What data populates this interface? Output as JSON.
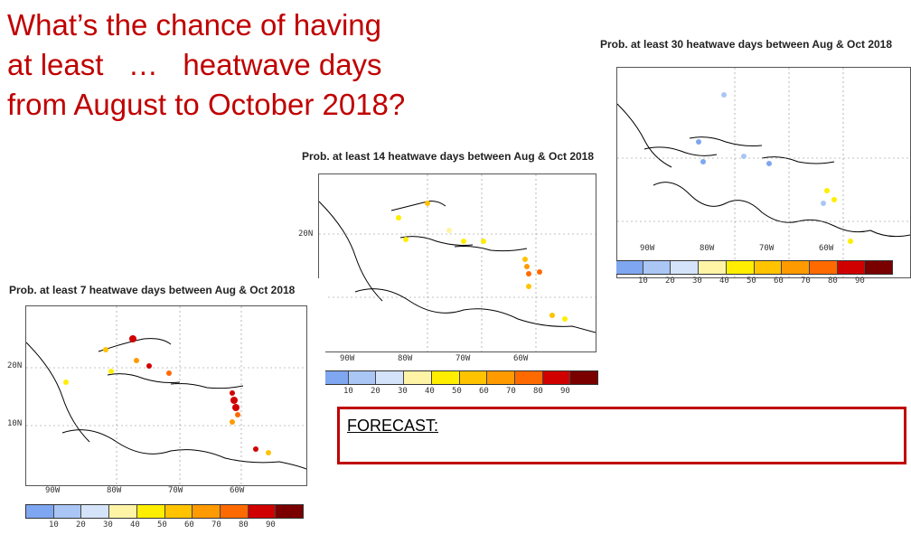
{
  "title_lines": [
    "What’s the chance of having",
    "at least   …   heatwave days",
    "from August to October 2018?"
  ],
  "panels": [
    {
      "id": "30",
      "title": "Prob. at least 30 heatwave days between Aug & Oct 2018",
      "lat_labels": [],
      "lon_labels": [
        "90W",
        "80W",
        "70W",
        "60W"
      ]
    },
    {
      "id": "14",
      "title": "Prob. at least 14 heatwave days between Aug & Oct 2018",
      "lat_labels": [
        "20N"
      ],
      "lon_labels": [
        "90W",
        "80W",
        "70W",
        "60W"
      ]
    },
    {
      "id": "7",
      "title": "Prob. at least  7 heatwave days between Aug & Oct 2018",
      "lat_labels": [
        "20N",
        "10N"
      ],
      "lon_labels": [
        "90W",
        "80W",
        "70W",
        "60W"
      ]
    }
  ],
  "colorbar": {
    "ticks": [
      "10",
      "20",
      "30",
      "40",
      "50",
      "60",
      "70",
      "80",
      "90"
    ],
    "colors": [
      "#7fa6f0",
      "#a9c6f5",
      "#d4e3fa",
      "#fff4a6",
      "#ffee00",
      "#ffc300",
      "#ff9a00",
      "#ff6a00",
      "#d10000",
      "#7a0000"
    ]
  },
  "forecast": {
    "label": "FORECAST:"
  }
}
